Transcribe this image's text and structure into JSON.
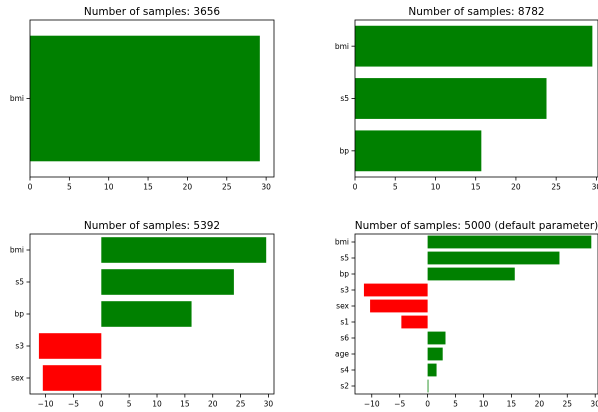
{
  "colors": {
    "positive": "#008000",
    "negative": "#ff0000"
  },
  "chart_data": [
    {
      "type": "bar",
      "orientation": "horizontal",
      "title": "Number of samples: 3656",
      "categories": [
        "bmi"
      ],
      "values": [
        29.2
      ],
      "xlim": [
        0,
        31
      ],
      "xticks": [
        "0",
        "5",
        "10",
        "15",
        "20",
        "25",
        "30"
      ]
    },
    {
      "type": "bar",
      "orientation": "horizontal",
      "title": "Number of samples: 8782",
      "categories": [
        "bmi",
        "s5",
        "bp"
      ],
      "values": [
        29.5,
        23.8,
        15.7
      ],
      "xlim": [
        0,
        30.2
      ],
      "xticks": [
        "0",
        "5",
        "10",
        "15",
        "20",
        "25",
        "30"
      ]
    },
    {
      "type": "bar",
      "orientation": "horizontal",
      "title": "Number of samples: 5392",
      "categories": [
        "bmi",
        "s5",
        "bp",
        "s3",
        "sex"
      ],
      "values": [
        29.6,
        23.8,
        16.2,
        -11.2,
        -10.5
      ],
      "xlim": [
        -12.8,
        31
      ],
      "xticks": [
        "−10",
        "−5",
        "0",
        "5",
        "10",
        "15",
        "20",
        "25",
        "30"
      ]
    },
    {
      "type": "bar",
      "orientation": "horizontal",
      "title": "Number of samples: 5000 (default parameter)",
      "categories": [
        "bmi",
        "s5",
        "bp",
        "s3",
        "sex",
        "s1",
        "s6",
        "age",
        "s4",
        "s2"
      ],
      "values": [
        29.3,
        23.6,
        15.6,
        -11.4,
        -10.3,
        -4.7,
        3.2,
        2.7,
        1.6,
        0.1
      ],
      "xlim": [
        -13,
        30.5
      ],
      "xticks": [
        "−10",
        "−5",
        "0",
        "5",
        "10",
        "15",
        "20",
        "25",
        "30"
      ]
    }
  ]
}
